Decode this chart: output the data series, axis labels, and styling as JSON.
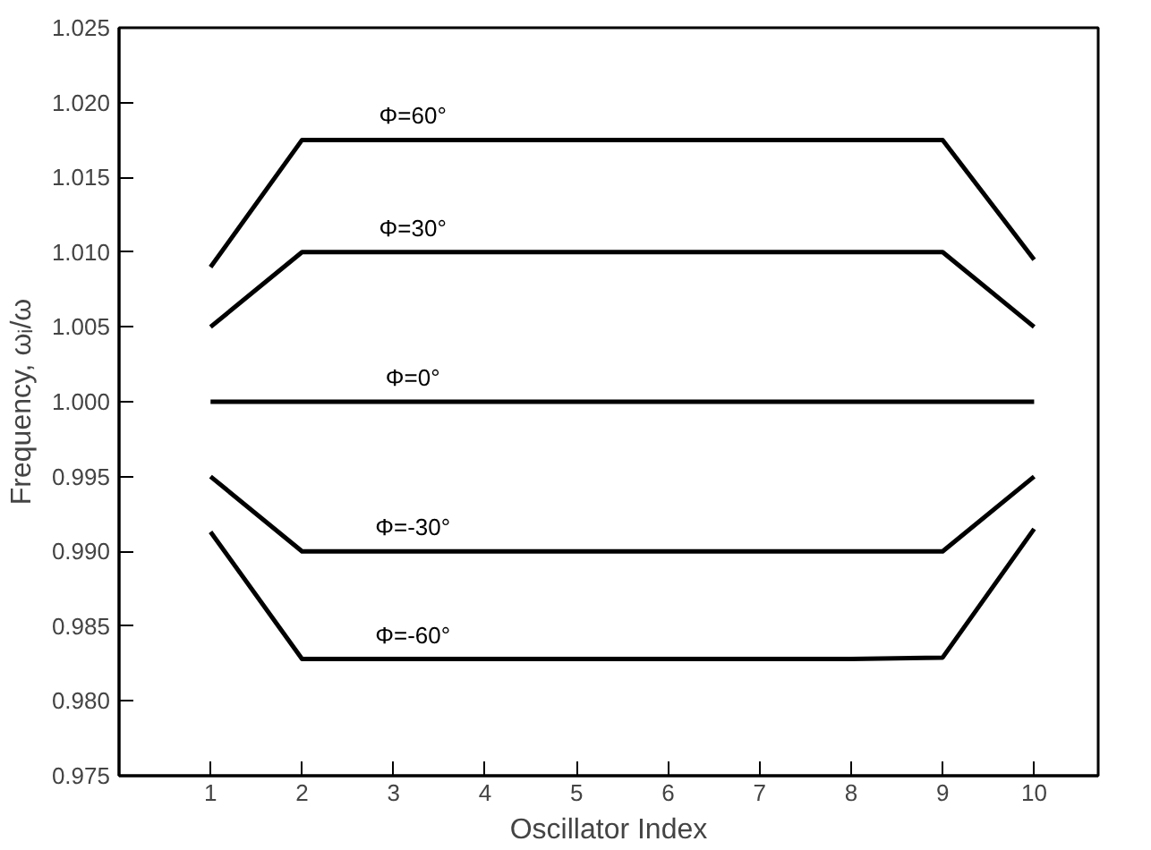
{
  "chart_data": {
    "type": "line",
    "xlabel": "Oscillator Index",
    "ylabel": "Frequency, ωᵢ/ω",
    "x": [
      1,
      2,
      3,
      4,
      5,
      6,
      7,
      8,
      9,
      10
    ],
    "series": [
      {
        "color": "#000000",
        "values": [
          1.009,
          1.0175,
          1.0175,
          1.0175,
          1.0175,
          1.0175,
          1.0175,
          1.0175,
          1.0175,
          1.0095
        ]
      },
      {
        "color": "#000000",
        "values": [
          1.005,
          1.01,
          1.01,
          1.01,
          1.01,
          1.01,
          1.01,
          1.01,
          1.01,
          1.005
        ]
      },
      {
        "color": "#000000",
        "values": [
          1.0,
          1.0,
          1.0,
          1.0,
          1.0,
          1.0,
          1.0,
          1.0,
          1.0,
          1.0
        ]
      },
      {
        "color": "#000000",
        "values": [
          0.995,
          0.99,
          0.99,
          0.99,
          0.99,
          0.99,
          0.99,
          0.99,
          0.99,
          0.995
        ]
      },
      {
        "color": "#000000",
        "values": [
          0.9913,
          0.9828,
          0.9828,
          0.9828,
          0.9828,
          0.9828,
          0.9828,
          0.9828,
          0.9829,
          0.9915
        ]
      }
    ],
    "annotations": [
      {
        "text": "Φ=60°",
        "y": 1.0175
      },
      {
        "text": "Φ=30°",
        "y": 1.01
      },
      {
        "text": "Φ=0°",
        "y": 1.0
      },
      {
        "text": "Φ=-30°",
        "y": 0.99
      },
      {
        "text": "Φ=-60°",
        "y": 0.9828
      }
    ],
    "xlim": [
      0,
      10.7
    ],
    "xticks": [
      1,
      2,
      3,
      4,
      5,
      6,
      7,
      8,
      9,
      10
    ],
    "ylim": [
      0.975,
      1.025
    ],
    "yticks": [
      {
        "value": 0.975,
        "label": "0.975"
      },
      {
        "value": 0.98,
        "label": "0.980"
      },
      {
        "value": 0.985,
        "label": "0.985"
      },
      {
        "value": 0.99,
        "label": "0.990"
      },
      {
        "value": 0.995,
        "label": "0.995"
      },
      {
        "value": 1.0,
        "label": "1.000"
      },
      {
        "value": 1.005,
        "label": "1.005"
      },
      {
        "value": 1.01,
        "label": "1.010"
      },
      {
        "value": 1.015,
        "label": "1.015"
      },
      {
        "value": 1.02,
        "label": "1.020"
      },
      {
        "value": 1.025,
        "label": "1.025"
      }
    ],
    "grid": false,
    "marker": "none",
    "line_style": "solid"
  }
}
